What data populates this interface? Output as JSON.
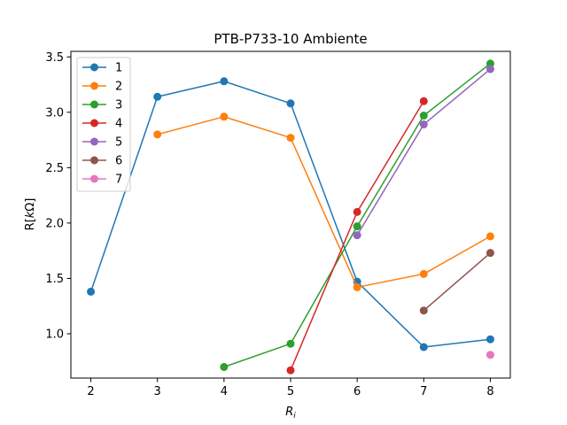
{
  "chart_data": {
    "type": "line",
    "title": "PTB-P733-10 Ambiente",
    "xlabel": "R_i",
    "ylabel": "R[kΩ]",
    "xlim": [
      1.7,
      8.3
    ],
    "ylim": [
      0.6,
      3.55
    ],
    "xticks": [
      2,
      3,
      4,
      5,
      6,
      7,
      8
    ],
    "yticks": [
      1.0,
      1.5,
      2.0,
      2.5,
      3.0,
      3.5
    ],
    "grid": false,
    "legend_position": "upper-left",
    "series": [
      {
        "name": "1",
        "color": "#1f77b4",
        "points": [
          [
            2,
            1.38
          ],
          [
            3,
            3.14
          ],
          [
            4,
            3.28
          ],
          [
            5,
            3.08
          ],
          [
            6,
            1.47
          ],
          [
            7,
            0.88
          ],
          [
            8,
            0.95
          ]
        ]
      },
      {
        "name": "2",
        "color": "#ff7f0e",
        "points": [
          [
            3,
            2.8
          ],
          [
            4,
            2.96
          ],
          [
            5,
            2.77
          ],
          [
            6,
            1.42
          ],
          [
            7,
            1.54
          ],
          [
            8,
            1.88
          ]
        ]
      },
      {
        "name": "3",
        "color": "#2ca02c",
        "points": [
          [
            4,
            0.7
          ],
          [
            5,
            0.91
          ],
          [
            6,
            1.97
          ],
          [
            7,
            2.97
          ],
          [
            8,
            3.44
          ]
        ]
      },
      {
        "name": "4",
        "color": "#d62728",
        "points": [
          [
            5,
            0.67
          ],
          [
            6,
            2.1
          ],
          [
            7,
            3.1
          ]
        ]
      },
      {
        "name": "5",
        "color": "#9467bd",
        "points": [
          [
            6,
            1.89
          ],
          [
            7,
            2.89
          ],
          [
            8,
            3.39
          ]
        ]
      },
      {
        "name": "6",
        "color": "#8c564b",
        "points": [
          [
            7,
            1.21
          ],
          [
            8,
            1.73
          ]
        ]
      },
      {
        "name": "7",
        "color": "#e377c2",
        "points": [
          [
            8,
            0.81
          ]
        ]
      }
    ]
  }
}
